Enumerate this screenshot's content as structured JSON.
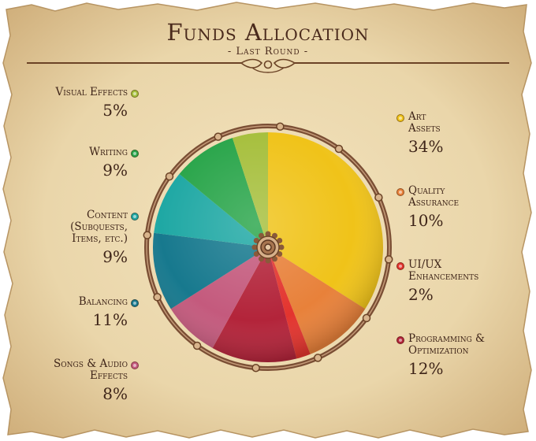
{
  "title": "Funds Allocation",
  "subtitle": "- Last Round -",
  "chart_data": {
    "type": "pie",
    "title": "Funds Allocation",
    "subtitle": "- Last Round -",
    "start_angle_deg": 0,
    "direction": "clockwise",
    "slices": [
      {
        "id": "art-assets",
        "label": "Art\nAssets",
        "value": 34,
        "value_label": "34%",
        "color": "#f0c319"
      },
      {
        "id": "quality-assurance",
        "label": "Quality\nAssurance",
        "value": 10,
        "value_label": "10%",
        "color": "#e8813a"
      },
      {
        "id": "ui-ux",
        "label": "UI/UX\nEnhancements",
        "value": 2,
        "value_label": "2%",
        "color": "#e3342e"
      },
      {
        "id": "programming",
        "label": "Programming &\nOptimization",
        "value": 12,
        "value_label": "12%",
        "color": "#b3243a"
      },
      {
        "id": "songs-audio",
        "label": "Songs & Audio\nEffects",
        "value": 8,
        "value_label": "8%",
        "color": "#c45a7d"
      },
      {
        "id": "balancing",
        "label": "Balancing",
        "value": 11,
        "value_label": "11%",
        "color": "#17798e"
      },
      {
        "id": "content",
        "label": "Content\n(Subquests,\nItems, etc.)",
        "value": 9,
        "value_label": "9%",
        "color": "#1fa8a4"
      },
      {
        "id": "writing",
        "label": "Writing",
        "value": 9,
        "value_label": "9%",
        "color": "#29a54a"
      },
      {
        "id": "visual-effects",
        "label": "Visual Effects",
        "value": 5,
        "value_label": "5%",
        "color": "#a6bf3c"
      }
    ]
  }
}
